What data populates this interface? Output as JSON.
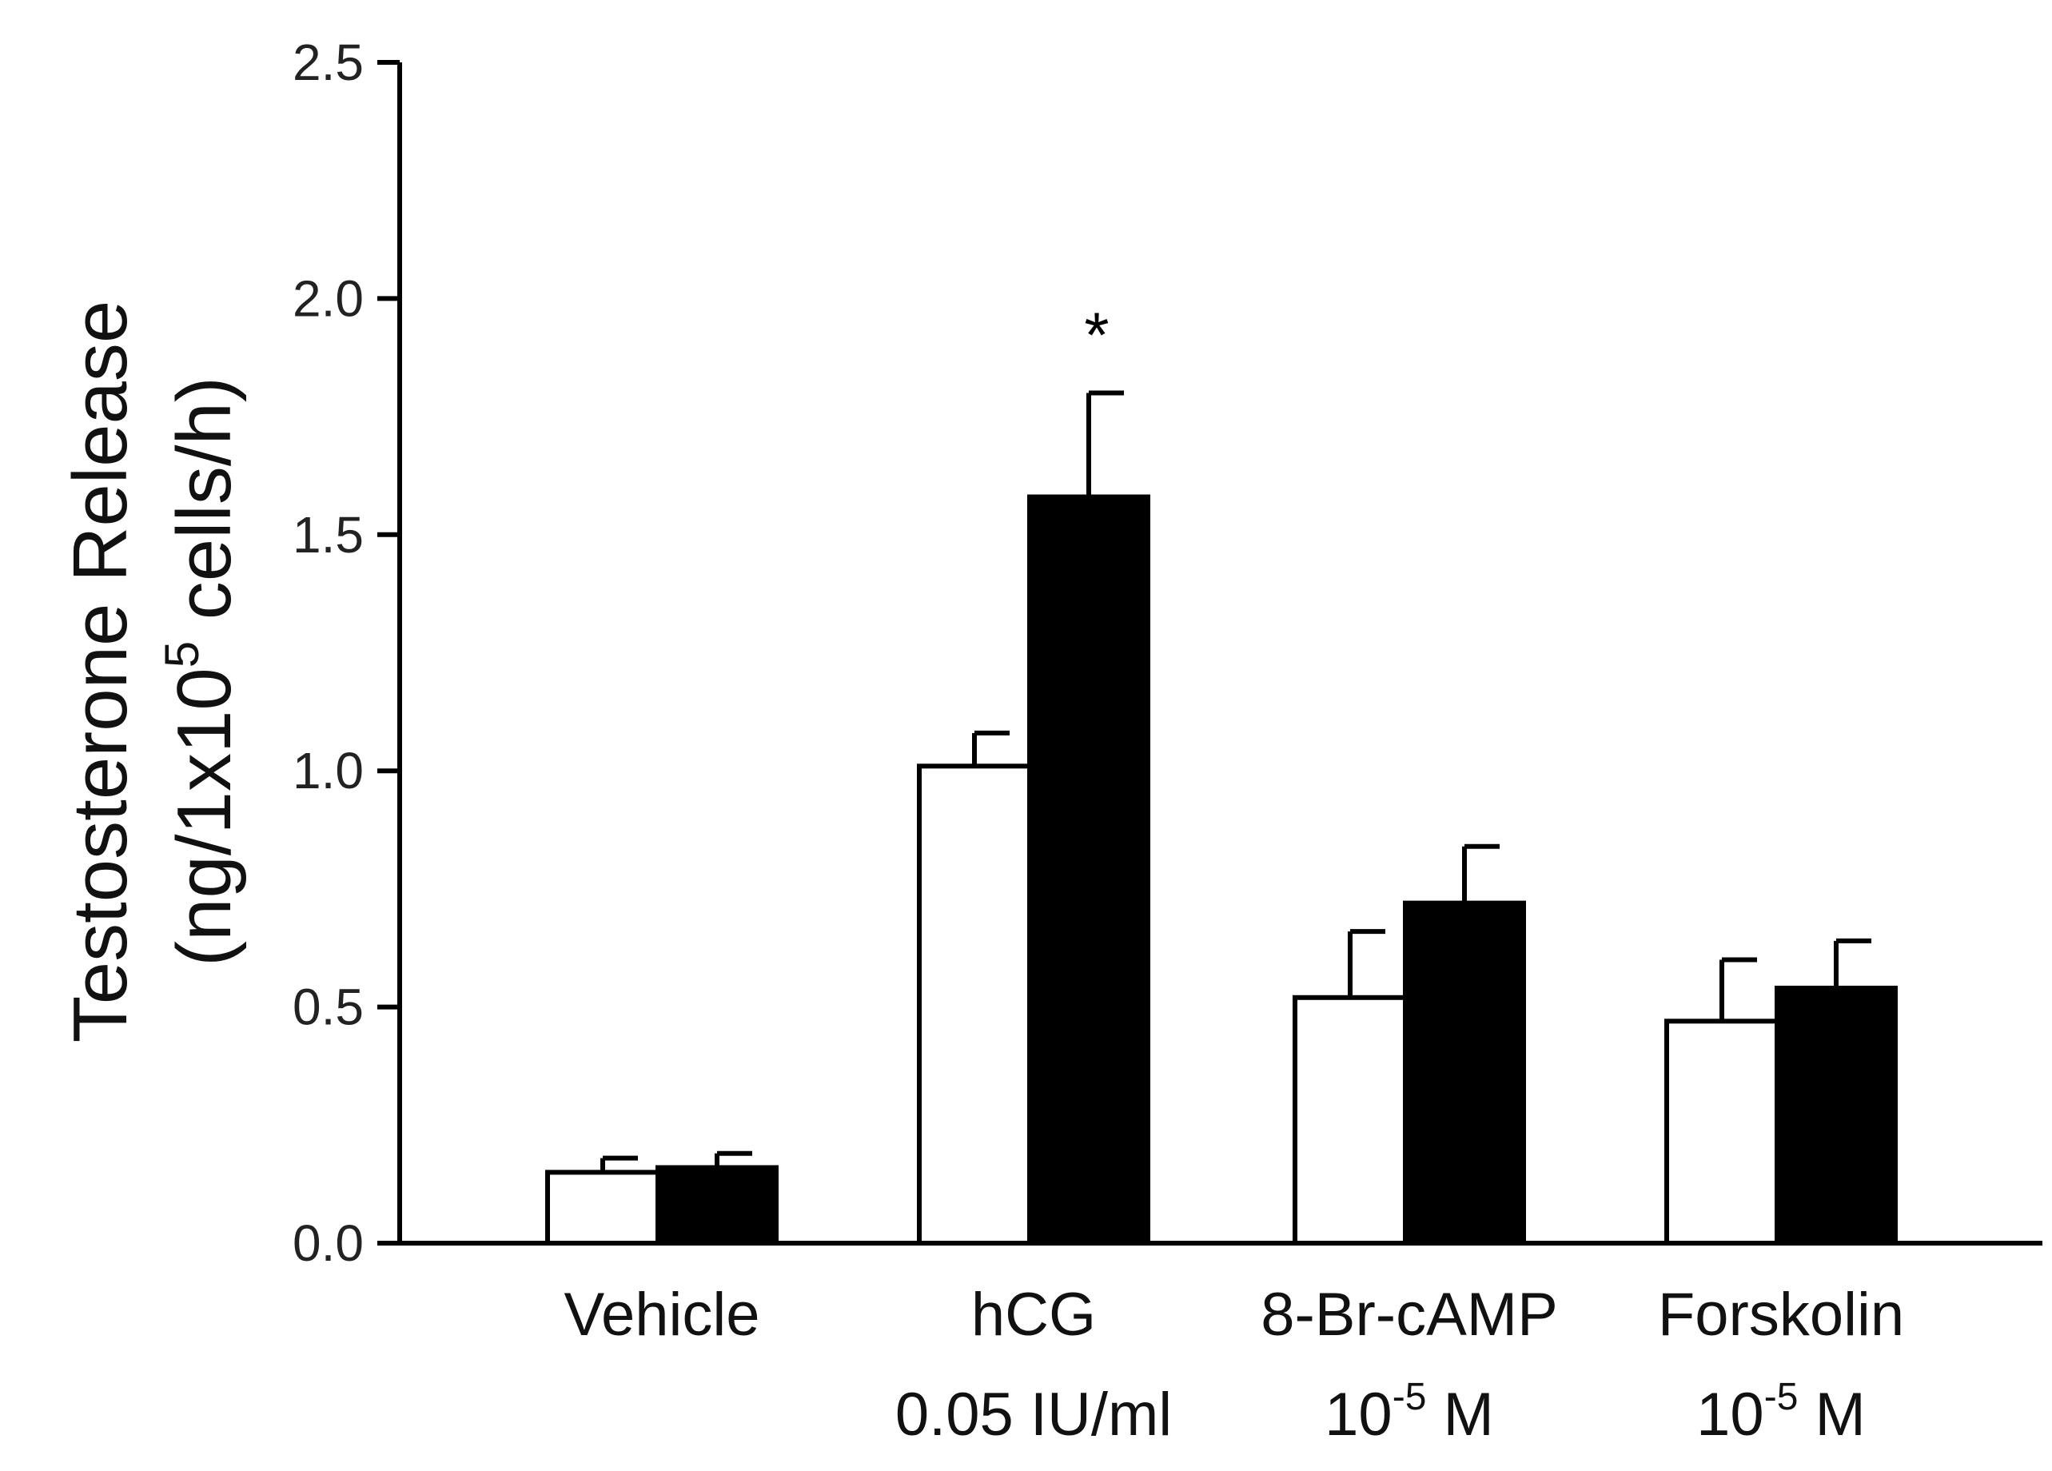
{
  "chart_data": {
    "type": "bar",
    "title": "",
    "ylabel": {
      "line1": "Testosterone Release",
      "line2_pre": "(ng/1x10",
      "line2_sup": "5",
      "line2_post": " cells/h)"
    },
    "xlabel": "",
    "ylim": [
      0,
      2.5
    ],
    "yticks": [
      "0.0",
      "0.5",
      "1.0",
      "1.5",
      "2.0",
      "2.5"
    ],
    "categories": [
      {
        "line1": "Vehicle",
        "line2": "",
        "sup": "",
        "post": ""
      },
      {
        "line1": "hCG",
        "line2": "0.05 IU/ml",
        "sup": "",
        "post": ""
      },
      {
        "line1": "8-Br-cAMP",
        "line2": "10",
        "sup": "-5",
        "post": " M"
      },
      {
        "line1": "Forskolin",
        "line2": "10",
        "sup": "-5",
        "post": " M"
      }
    ],
    "series": [
      {
        "fill": "#ffffff",
        "values": [
          0.15,
          1.01,
          0.52,
          0.47
        ],
        "errors": [
          0.03,
          0.07,
          0.14,
          0.13
        ]
      },
      {
        "fill": "#000000",
        "values": [
          0.16,
          1.58,
          0.72,
          0.54
        ],
        "errors": [
          0.03,
          0.22,
          0.12,
          0.1
        ]
      }
    ],
    "annotations": [
      {
        "text": "*",
        "category": 1,
        "series": 1
      }
    ]
  }
}
